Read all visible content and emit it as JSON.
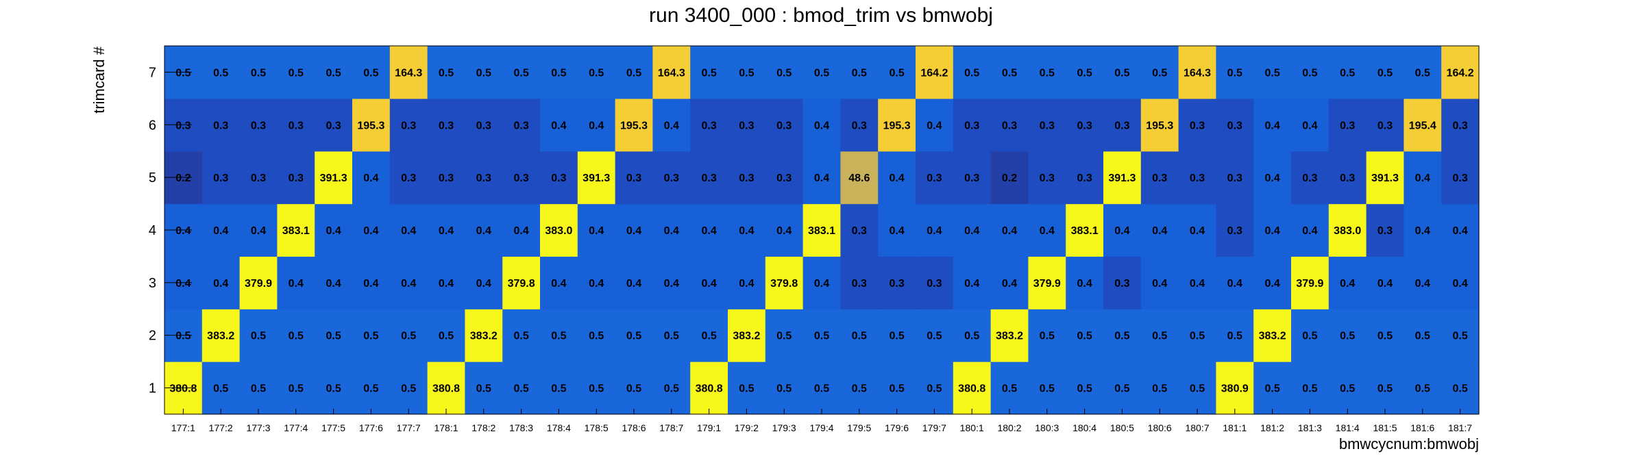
{
  "chart_data": {
    "type": "heatmap",
    "title": "run 3400_000 : bmod_trim vs bmwobj",
    "xlabel": "bmwcycnum:bmwobj",
    "ylabel": "trimcard #",
    "x_categories": [
      "177:1",
      "177:2",
      "177:3",
      "177:4",
      "177:5",
      "177:6",
      "177:7",
      "178:1",
      "178:2",
      "178:3",
      "178:4",
      "178:5",
      "178:6",
      "178:7",
      "179:1",
      "179:2",
      "179:3",
      "179:4",
      "179:5",
      "179:6",
      "179:7",
      "180:1",
      "180:2",
      "180:3",
      "180:4",
      "180:5",
      "180:6",
      "180:7",
      "181:1",
      "181:2",
      "181:3",
      "181:4",
      "181:5",
      "181:6",
      "181:7"
    ],
    "y_categories": [
      "1",
      "2",
      "3",
      "4",
      "5",
      "6",
      "7"
    ],
    "values": [
      [
        "380.8",
        "0.5",
        "0.5",
        "0.5",
        "0.5",
        "0.5",
        "0.5",
        "380.8",
        "0.5",
        "0.5",
        "0.5",
        "0.5",
        "0.5",
        "0.5",
        "380.8",
        "0.5",
        "0.5",
        "0.5",
        "0.5",
        "0.5",
        "0.5",
        "380.8",
        "0.5",
        "0.5",
        "0.5",
        "0.5",
        "0.5",
        "0.5",
        "380.9",
        "0.5",
        "0.5",
        "0.5",
        "0.5",
        "0.5",
        "0.5"
      ],
      [
        "0.5",
        "383.2",
        "0.5",
        "0.5",
        "0.5",
        "0.5",
        "0.5",
        "0.5",
        "383.2",
        "0.5",
        "0.5",
        "0.5",
        "0.5",
        "0.5",
        "0.5",
        "383.2",
        "0.5",
        "0.5",
        "0.5",
        "0.5",
        "0.5",
        "0.5",
        "383.2",
        "0.5",
        "0.5",
        "0.5",
        "0.5",
        "0.5",
        "0.5",
        "383.2",
        "0.5",
        "0.5",
        "0.5",
        "0.5",
        "0.5"
      ],
      [
        "0.4",
        "0.4",
        "379.9",
        "0.4",
        "0.4",
        "0.4",
        "0.4",
        "0.4",
        "0.4",
        "379.8",
        "0.4",
        "0.4",
        "0.4",
        "0.4",
        "0.4",
        "0.4",
        "379.8",
        "0.4",
        "0.3",
        "0.3",
        "0.3",
        "0.4",
        "0.4",
        "379.9",
        "0.4",
        "0.3",
        "0.4",
        "0.4",
        "0.4",
        "0.4",
        "379.9",
        "0.4",
        "0.4",
        "0.4",
        "0.4"
      ],
      [
        "0.4",
        "0.4",
        "0.4",
        "383.1",
        "0.4",
        "0.4",
        "0.4",
        "0.4",
        "0.4",
        "0.4",
        "383.0",
        "0.4",
        "0.4",
        "0.4",
        "0.4",
        "0.4",
        "0.4",
        "383.1",
        "0.3",
        "0.4",
        "0.4",
        "0.4",
        "0.4",
        "0.4",
        "383.1",
        "0.4",
        "0.4",
        "0.4",
        "0.3",
        "0.4",
        "0.4",
        "383.0",
        "0.3",
        "0.4",
        "0.4"
      ],
      [
        "0.2",
        "0.3",
        "0.3",
        "0.3",
        "391.3",
        "0.4",
        "0.3",
        "0.3",
        "0.3",
        "0.3",
        "0.3",
        "391.3",
        "0.3",
        "0.3",
        "0.3",
        "0.3",
        "0.3",
        "0.4",
        "48.6",
        "0.4",
        "0.3",
        "0.3",
        "0.2",
        "0.3",
        "0.3",
        "391.3",
        "0.3",
        "0.3",
        "0.3",
        "0.4",
        "0.3",
        "0.3",
        "391.3",
        "0.4",
        "0.3"
      ],
      [
        "0.3",
        "0.3",
        "0.3",
        "0.3",
        "0.3",
        "195.3",
        "0.3",
        "0.3",
        "0.3",
        "0.3",
        "0.4",
        "0.4",
        "195.3",
        "0.4",
        "0.3",
        "0.3",
        "0.3",
        "0.4",
        "0.3",
        "195.3",
        "0.4",
        "0.3",
        "0.3",
        "0.3",
        "0.3",
        "0.3",
        "195.3",
        "0.3",
        "0.3",
        "0.4",
        "0.4",
        "0.3",
        "0.3",
        "195.4",
        "0.3"
      ],
      [
        "0.5",
        "0.5",
        "0.5",
        "0.5",
        "0.5",
        "0.5",
        "164.3",
        "0.5",
        "0.5",
        "0.5",
        "0.5",
        "0.5",
        "0.5",
        "164.3",
        "0.5",
        "0.5",
        "0.5",
        "0.5",
        "0.5",
        "0.5",
        "164.2",
        "0.5",
        "0.5",
        "0.5",
        "0.5",
        "0.5",
        "0.5",
        "164.3",
        "0.5",
        "0.5",
        "0.5",
        "0.5",
        "0.5",
        "0.5",
        "164.2"
      ]
    ],
    "palette": {
      "low_dark": "#2240a8",
      "low": "#1f4cc0",
      "mid": "#1860d8",
      "mid_light": "#1a66db",
      "tan": "#c9b25a",
      "orange_yellow": "#f5cd35",
      "yellow": "#f7f71b"
    },
    "grid": false,
    "legend": "none"
  }
}
